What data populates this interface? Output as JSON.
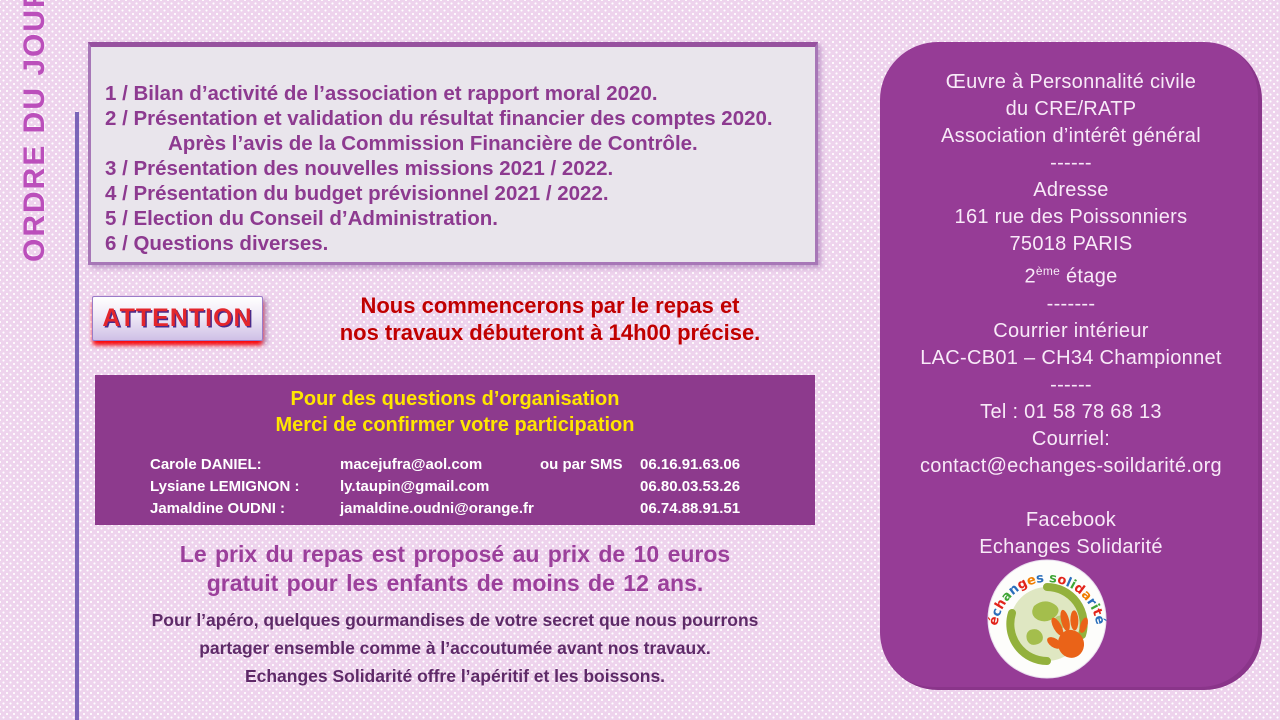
{
  "sidebar_title": "ORDRE DU JOUR",
  "agenda": {
    "items": [
      "1 / Bilan d’activité de l’association et rapport moral 2020.",
      "2 / Présentation et validation du résultat financier des comptes 2020.",
      "Après l’avis de la Commission Financière de Contrôle.",
      "3 / Présentation des nouvelles missions 2021 / 2022.",
      "4 / Présentation du budget prévisionnel 2021 / 2022.",
      "5 / Election du Conseil d’Administration.",
      "6 / Questions diverses."
    ]
  },
  "attention": {
    "label": "ATTENTION",
    "message_line1": "Nous commencerons par le repas et",
    "message_line2": "nos travaux débuteront à 14h00 précise."
  },
  "contact_box": {
    "title_line1": "Pour des questions d’organisation",
    "title_line2": "Merci de confirmer votre participation",
    "rows": [
      {
        "name": "Carole DANIEL:",
        "email": "macejufra@aol.com",
        "sms": "ou par SMS",
        "phone": "06.16.91.63.06"
      },
      {
        "name": "Lysiane LEMIGNON :",
        "email": "ly.taupin@gmail.com",
        "sms": "",
        "phone": "06.80.03.53.26"
      },
      {
        "name": "Jamaldine OUDNI :",
        "email": "jamaldine.oudni@orange.fr",
        "sms": "",
        "phone": "06.74.88.91.51"
      }
    ]
  },
  "meal": {
    "line1": "Le prix du repas est proposé au prix de 10 euros",
    "line2": "gratuit pour les enfants de moins de 12 ans."
  },
  "apero": {
    "line1": "Pour l’apéro, quelques gourmandises de votre secret que nous pourrons",
    "line2": "partager ensemble comme à l’accoutumée avant nos travaux.",
    "line3": "Echanges Solidarité offre l’apéritif et les boissons."
  },
  "info_panel": {
    "org_line1": "Œuvre à Personnalité civile",
    "org_line2": "du CRE/RATP",
    "org_line3": "Association d’intérêt général",
    "sep1": "------",
    "address_label": "Adresse",
    "address_line1": "161 rue des Poissonniers",
    "address_line2": "75018 PARIS",
    "floor_number": "2",
    "floor_sup": "ème",
    "floor_rest": " étage",
    "sep2": "-------",
    "mail_label": "Courrier intérieur",
    "mail_code": "LAC-CB01 – CH34 Championnet",
    "sep3": "------",
    "tel": "Tel : 01 58 78 68 13",
    "email_label": "Courriel:",
    "email": "contact@echanges-soildarité.org",
    "facebook_label": "Facebook",
    "facebook_name": "Echanges Solidarité"
  },
  "logo": {
    "text": "échanges solidarité",
    "letter_colors": [
      "#e2231a",
      "#2a6ebb",
      "#e2231a",
      "#3fa535",
      "#2a6ebb",
      "#e2231a",
      "#f07d00",
      "#2a6ebb",
      "#e2231a",
      "#3fa535",
      "#e2231a",
      "#2a6ebb",
      "#3fa535",
      "#e2231a",
      "#f07d00",
      "#2a6ebb",
      "#3fa535",
      "#e2231a",
      "#2a6ebb"
    ]
  },
  "colors": {
    "panel_purple": "#963c96",
    "contact_purple": "#8d3a8d",
    "accent_yellow": "#ffe600",
    "message_red": "#c00000",
    "attention_red": "#e3262c",
    "agenda_purple": "#8d3a90",
    "title_magenta": "#bb4fbb"
  }
}
